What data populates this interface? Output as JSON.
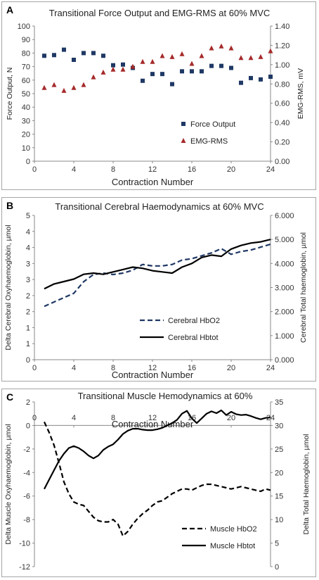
{
  "chart_data": [
    {
      "panel_label": "A",
      "type": "scatter",
      "title": "Transitional Force Output and EMG-RMS at 60% MVC",
      "xlabel": "Contraction Number",
      "ylabel": "Force Output, N",
      "y2label": "EMG-RMS, mV",
      "xlim": [
        0,
        24
      ],
      "ylim": [
        0,
        100
      ],
      "y2lim": [
        0,
        1.4
      ],
      "xticks": [
        "0",
        "4",
        "8",
        "12",
        "16",
        "20",
        "24"
      ],
      "yticks": [
        "0",
        "10",
        "20",
        "30",
        "40",
        "50",
        "60",
        "70",
        "80",
        "90",
        "100"
      ],
      "y2ticks": [
        "0.00",
        "0.20",
        "0.40",
        "0.60",
        "0.80",
        "1.00",
        "1.20",
        "1.40"
      ],
      "legend_position": "bottom-right",
      "grid": false,
      "series": [
        {
          "name": "Force Output",
          "axis": "left",
          "marker": "square",
          "color": "#1f3864",
          "x": [
            1,
            2,
            3,
            4,
            5,
            6,
            7,
            8,
            9,
            10,
            11,
            12,
            13,
            14,
            15,
            16,
            17,
            18,
            19,
            20,
            21,
            22,
            23,
            24
          ],
          "values": [
            78,
            78.5,
            82.5,
            75,
            80,
            80,
            78,
            71,
            71.5,
            69,
            59.5,
            64.5,
            64.5,
            57,
            66.5,
            66.5,
            66.5,
            70.5,
            70.5,
            69,
            58,
            61.5,
            60.5,
            62.5
          ]
        },
        {
          "name": "EMG-RMS",
          "axis": "right",
          "marker": "triangle",
          "color": "#a52a2a",
          "x": [
            1,
            2,
            3,
            4,
            5,
            6,
            7,
            8,
            9,
            10,
            11,
            12,
            13,
            14,
            15,
            16,
            17,
            18,
            19,
            20,
            21,
            22,
            23,
            24
          ],
          "values": [
            0.76,
            0.79,
            0.73,
            0.76,
            0.79,
            0.87,
            0.92,
            0.95,
            0.95,
            0.98,
            1.03,
            1.03,
            1.09,
            1.08,
            1.11,
            1.01,
            1.09,
            1.17,
            1.19,
            1.17,
            1.07,
            1.07,
            1.08,
            1.14
          ]
        }
      ]
    },
    {
      "panel_label": "B",
      "type": "line",
      "title": "Transitional Cerebral  Haemodynamics at 60% MVC",
      "xlabel": "Contraction Number",
      "ylabel": "Delta Cerebral Oxyhaemoglobin, µmol",
      "y2label": "Cerebral Total haemoglobin, µmol",
      "xlim": [
        0,
        24
      ],
      "ylim": [
        0,
        5
      ],
      "y2lim": [
        0,
        6
      ],
      "xticks": [
        "0",
        "4",
        "8",
        "12",
        "16",
        "20",
        "24"
      ],
      "yticks": [
        "0",
        "1",
        "1",
        "2",
        "2",
        "3",
        "3",
        "4",
        "4",
        "5"
      ],
      "y2ticks": [
        "0.000",
        "1.000",
        "2.000",
        "3.000",
        "4.000",
        "5.000",
        "6.000"
      ],
      "legend_position": "bottom-left",
      "grid": false,
      "series": [
        {
          "name": "Cerebral HbO2",
          "axis": "left",
          "style": "dashed",
          "color": "#1f3864",
          "x": [
            1,
            2,
            3,
            4,
            5,
            6,
            7,
            8,
            9,
            10,
            11,
            12,
            13,
            14,
            15,
            16,
            17,
            18,
            19,
            20,
            21,
            22,
            23,
            24
          ],
          "values": [
            1.85,
            2.0,
            2.15,
            2.3,
            2.7,
            2.95,
            3.0,
            2.95,
            3.0,
            3.1,
            3.3,
            3.25,
            3.25,
            3.3,
            3.45,
            3.5,
            3.6,
            3.7,
            3.85,
            3.65,
            3.75,
            3.8,
            3.9,
            4.0
          ]
        },
        {
          "name": "Cerebral Hbtot",
          "axis": "right",
          "style": "solid",
          "color": "#000000",
          "x": [
            1,
            2,
            3,
            4,
            5,
            6,
            7,
            8,
            9,
            10,
            11,
            12,
            13,
            14,
            15,
            16,
            17,
            18,
            19,
            20,
            21,
            22,
            23,
            24
          ],
          "values": [
            2.95,
            3.15,
            3.25,
            3.35,
            3.55,
            3.6,
            3.55,
            3.65,
            3.75,
            3.85,
            3.8,
            3.7,
            3.65,
            3.6,
            3.85,
            4.0,
            4.25,
            4.35,
            4.3,
            4.6,
            4.75,
            4.85,
            4.9,
            5.0
          ]
        }
      ]
    },
    {
      "panel_label": "C",
      "type": "line",
      "title": "Transitional Muscle Hemodynamics at 60%",
      "xlabel": "Contraction Number",
      "ylabel": "Delta Muscle Oxyhaemoglobin, µmol",
      "y2label": "Delta Total Haemoglobin, µmol",
      "xlim": [
        0,
        24
      ],
      "ylim": [
        -12,
        2
      ],
      "y2lim": [
        0,
        35
      ],
      "xticks": [
        "0",
        "4",
        "8",
        "12",
        "16",
        "20",
        "24"
      ],
      "yticks": [
        "-12",
        "-10",
        "-8",
        "-6",
        "-4",
        "-2",
        "0",
        "2"
      ],
      "y2ticks": [
        "0",
        "5",
        "10",
        "15",
        "20",
        "25",
        "30",
        "35"
      ],
      "legend_position": "bottom-right",
      "grid": false,
      "series": [
        {
          "name": "Muscle HbO2",
          "axis": "left",
          "style": "dashed",
          "color": "#000000",
          "x": [
            1,
            1.5,
            2,
            2.5,
            3,
            3.5,
            4,
            4.5,
            5,
            5.5,
            6,
            6.5,
            7,
            7.5,
            8,
            8.5,
            9,
            9.5,
            10,
            10.5,
            11,
            11.5,
            12,
            12.5,
            13,
            13.5,
            14,
            14.5,
            15,
            15.5,
            16,
            16.5,
            17,
            17.5,
            18,
            18.5,
            19,
            19.5,
            20,
            20.5,
            21,
            21.5,
            22,
            22.5,
            23,
            23.5,
            24
          ],
          "values": [
            0.3,
            -0.6,
            -1.7,
            -3.2,
            -4.8,
            -5.8,
            -6.5,
            -6.7,
            -6.8,
            -7.3,
            -7.8,
            -8.1,
            -8.2,
            -8.2,
            -8.0,
            -8.4,
            -9.4,
            -9.0,
            -8.4,
            -7.9,
            -7.5,
            -7.2,
            -6.8,
            -6.5,
            -6.4,
            -6.1,
            -5.8,
            -5.6,
            -5.4,
            -5.4,
            -5.5,
            -5.3,
            -5.1,
            -5.0,
            -5.0,
            -5.1,
            -5.2,
            -5.3,
            -5.4,
            -5.3,
            -5.2,
            -5.3,
            -5.4,
            -5.5,
            -5.6,
            -5.4,
            -5.5
          ]
        },
        {
          "name": "Muscle Hbtot",
          "axis": "right",
          "style": "solid",
          "color": "#000000",
          "x": [
            1,
            1.5,
            2,
            2.5,
            3,
            3.5,
            4,
            4.5,
            5,
            5.5,
            6,
            6.5,
            7,
            7.5,
            8,
            8.5,
            9,
            9.5,
            10,
            10.5,
            11,
            11.5,
            12,
            12.5,
            13,
            13.5,
            14,
            14.5,
            15,
            15.5,
            16,
            16.5,
            17,
            17.5,
            18,
            18.5,
            19,
            19.5,
            20,
            20.5,
            21,
            21.5,
            22,
            22.5,
            23,
            23.5,
            24
          ],
          "values": [
            16.5,
            18.5,
            20.5,
            22.5,
            24.0,
            25.2,
            25.6,
            25.2,
            24.5,
            23.6,
            23.0,
            23.6,
            24.8,
            25.5,
            26.0,
            27.0,
            28.2,
            28.9,
            29.3,
            29.3,
            29.1,
            29.0,
            29.0,
            29.2,
            29.5,
            30.0,
            30.5,
            31.2,
            32.5,
            33.1,
            31.5,
            30.5,
            31.5,
            32.5,
            33.0,
            32.6,
            33.2,
            32.2,
            32.9,
            32.4,
            32.2,
            32.3,
            32.0,
            31.6,
            31.3,
            31.6,
            31.7
          ]
        }
      ]
    }
  ]
}
